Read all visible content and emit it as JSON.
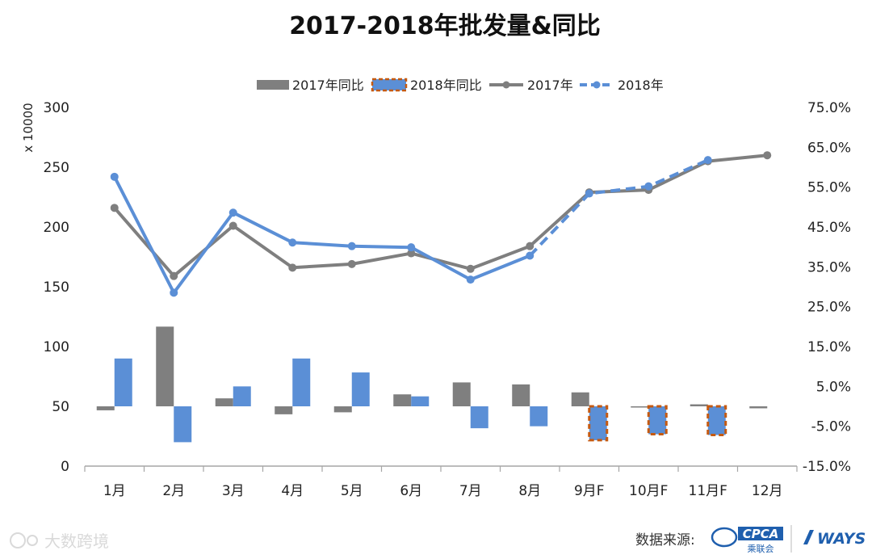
{
  "chart_data": {
    "type": "bar",
    "title": "2017-2018年批发量&同比",
    "categories": [
      "1月",
      "2月",
      "3月",
      "4月",
      "5月",
      "6月",
      "7月",
      "8月",
      "9月F",
      "10月F",
      "11月F",
      "12月"
    ],
    "y_left": {
      "label": "x 10000",
      "range": [
        0,
        300
      ],
      "ticks": [
        "0",
        "50",
        "100",
        "150",
        "200",
        "250",
        "300"
      ]
    },
    "y_right": {
      "range": [
        -15,
        75
      ],
      "ticks": [
        "-15.0%",
        "-5.0%",
        "5.0%",
        "15.0%",
        "25.0%",
        "35.0%",
        "45.0%",
        "55.0%",
        "65.0%",
        "75.0%"
      ]
    },
    "series": [
      {
        "name": "2017年同比",
        "kind": "bar",
        "axis": "right",
        "color": "#7f7f7f",
        "values": [
          -1,
          20,
          2,
          -2,
          -1.5,
          3,
          6,
          5.5,
          3.5,
          0,
          0.5,
          -0.5
        ]
      },
      {
        "name": "2018年同比",
        "kind": "bar",
        "axis": "right",
        "color": "#5b8fd6",
        "forecast_from": 8,
        "forecast_border": "#c55a11",
        "values": [
          12,
          -9,
          5,
          12,
          8.5,
          2.5,
          -5.5,
          -5,
          -8.5,
          -7,
          -7.2,
          null
        ]
      },
      {
        "name": "2017年",
        "kind": "line",
        "axis": "left",
        "color": "#7f7f7f",
        "values": [
          216,
          159,
          201,
          166,
          169,
          178,
          165,
          184,
          229,
          231,
          255,
          260
        ]
      },
      {
        "name": "2018年",
        "kind": "line",
        "axis": "left",
        "color": "#5b8fd6",
        "dashed_from": 7,
        "values": [
          242,
          145,
          212,
          187,
          184,
          183,
          156,
          176,
          228,
          234,
          256,
          null
        ]
      }
    ],
    "legend_position": "top"
  },
  "footer": {
    "source_label": "数据来源:",
    "logo_cpca": "CPCA",
    "logo_cpca_sub": "乘联会",
    "logo_ways": "WAYS"
  },
  "watermark": "大数跨境"
}
